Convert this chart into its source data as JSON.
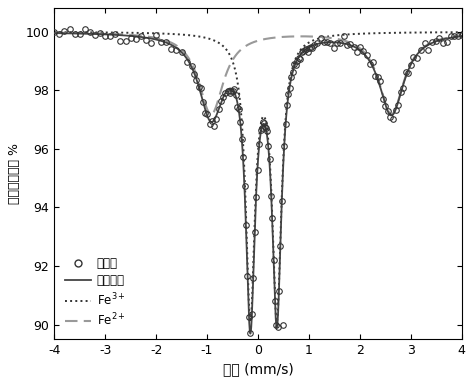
{
  "xlim": [
    -4,
    4
  ],
  "ylim": [
    89.5,
    100.8
  ],
  "yticks": [
    90,
    92,
    94,
    96,
    98,
    100
  ],
  "xticks": [
    -4,
    -3,
    -2,
    -1,
    0,
    1,
    2,
    3,
    4
  ],
  "xlabel": "速率 (mm/s)",
  "ylabel": "相对吸收强度 %",
  "legend_labels": [
    "测试点",
    "拟合曲线",
    "Fe$^{3+}$",
    "Fe$^{2+}$"
  ],
  "fit_color": "#444444",
  "fe3_color": "#333333",
  "fe2_color": "#999999",
  "data_color": "#333333",
  "background_color": "#ffffff",
  "fe3_peaks": [
    -0.15,
    0.37
  ],
  "fe3_gamma": 0.22,
  "fe3_amp": 9.5,
  "fe2_peaks": [
    -0.92,
    2.62
  ],
  "fe2_gamma": 0.6,
  "fe2_amp": 2.8
}
